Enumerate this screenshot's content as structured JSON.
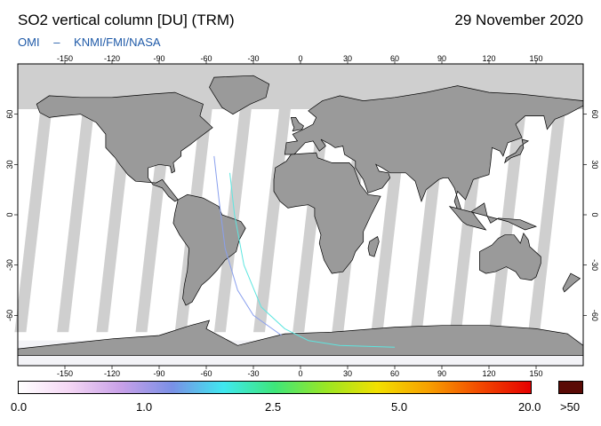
{
  "header": {
    "title": "SO2 vertical column [DU] (TRM)",
    "date": "29 November 2020",
    "credit_left": "OMI",
    "credit_sep": "–",
    "credit_right": "KNMI/FMI/NASA"
  },
  "map": {
    "lon_ticks": [
      -150,
      -120,
      -90,
      -60,
      -30,
      0,
      30,
      60,
      90,
      120,
      150
    ],
    "lat_ticks": [
      60,
      30,
      0,
      -30,
      -60
    ],
    "land_color": "#9a9a9a",
    "nodata_color": "#cfcfcf",
    "background_color": "#ffffff",
    "swath_gap_lons": [
      -170,
      -143,
      -118,
      -93,
      -68,
      -43,
      -18,
      7,
      32,
      57,
      82,
      107,
      132,
      157
    ]
  },
  "colorbar": {
    "labels": [
      "0.0",
      "1.0",
      "2.5",
      "5.0",
      "20.0",
      ">50"
    ],
    "stops": [
      "#ffffff",
      "#f4d6f4",
      "#c8a0e8",
      "#7a90e6",
      "#3fe8f0",
      "#3ee67a",
      "#9ae624",
      "#f2e000",
      "#f7a000",
      "#f24a00",
      "#e60000"
    ],
    "over_color": "#5a0a05"
  }
}
